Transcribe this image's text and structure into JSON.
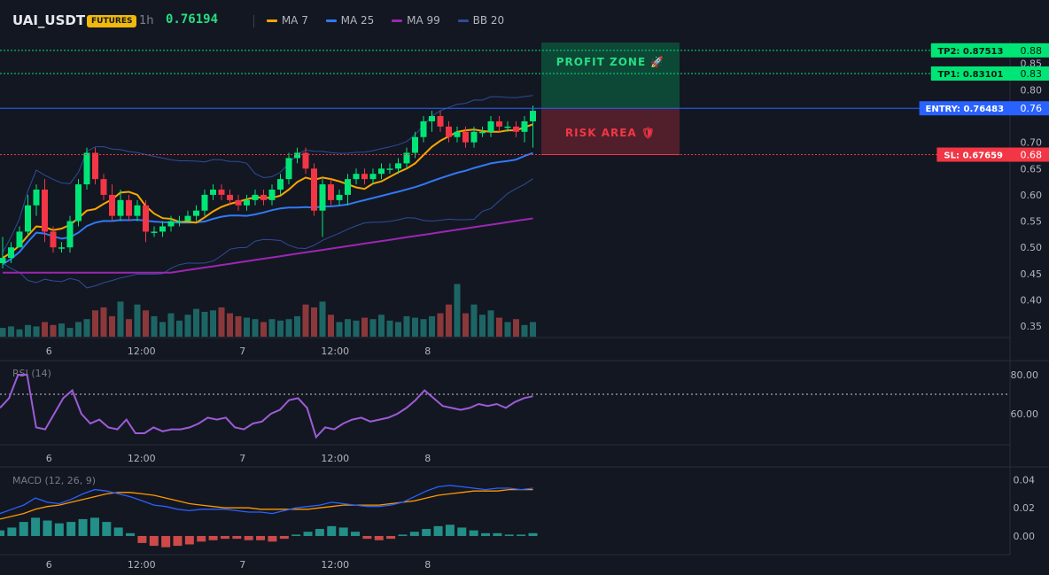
{
  "header": {
    "symbol": "UAI_USDT",
    "badge": "FUTURES",
    "timeframe": "1h",
    "last_price": "0.76194",
    "legend": [
      {
        "label": "MA 7",
        "color": "#f7a600"
      },
      {
        "label": "MA 25",
        "color": "#3179f5"
      },
      {
        "label": "MA 99",
        "color": "#9c27b0"
      },
      {
        "label": "BB 20",
        "color": "#2e4c9a"
      }
    ]
  },
  "zones": {
    "profit_label": "PROFIT ZONE 🚀",
    "risk_label": "RISK AREA 🛡",
    "tp2_label": "TP2: 0.87513",
    "tp1_label": "TP1: 0.83101",
    "entry_label": "ENTRY: 0.76483",
    "sl_label": "SL: 0.67659",
    "tp2": 0.87513,
    "tp1": 0.83101,
    "entry": 0.76483,
    "sl": 0.67659,
    "colors": {
      "tp": "#00e676",
      "entry": "#2962ff",
      "sl": "#f23645"
    }
  },
  "chart_data": [
    {
      "type": "candlestick",
      "title": "",
      "ylim": [
        0.33,
        0.89
      ],
      "y_ticks": [
        "0.88",
        "0.85",
        "0.83",
        "0.80",
        "0.76",
        "0.70",
        "0.68",
        "0.65",
        "0.60",
        "0.55",
        "0.50",
        "0.45",
        "0.40",
        "0.35"
      ],
      "x_tick_labels": [
        "6",
        "12:00",
        "7",
        "12:00",
        "8"
      ],
      "x_tick_index": [
        5.5,
        16.5,
        28.5,
        39.5,
        50.5
      ],
      "candles": [
        [
          0.48,
          0.47,
          0.52,
          0.46
        ],
        [
          0.5,
          0.48,
          0.51,
          0.47
        ],
        [
          0.53,
          0.5,
          0.54,
          0.5
        ],
        [
          0.58,
          0.53,
          0.6,
          0.52
        ],
        [
          0.61,
          0.58,
          0.62,
          0.56
        ],
        [
          0.53,
          0.61,
          0.63,
          0.51
        ],
        [
          0.5,
          0.53,
          0.54,
          0.49
        ],
        [
          0.5,
          0.5,
          0.51,
          0.49
        ],
        [
          0.55,
          0.5,
          0.56,
          0.49
        ],
        [
          0.62,
          0.55,
          0.63,
          0.54
        ],
        [
          0.68,
          0.62,
          0.69,
          0.61
        ],
        [
          0.63,
          0.68,
          0.69,
          0.62
        ],
        [
          0.6,
          0.63,
          0.64,
          0.59
        ],
        [
          0.56,
          0.6,
          0.62,
          0.55
        ],
        [
          0.59,
          0.56,
          0.61,
          0.55
        ],
        [
          0.56,
          0.59,
          0.6,
          0.55
        ],
        [
          0.58,
          0.56,
          0.59,
          0.55
        ],
        [
          0.53,
          0.58,
          0.59,
          0.51
        ],
        [
          0.53,
          0.53,
          0.54,
          0.52
        ],
        [
          0.54,
          0.53,
          0.55,
          0.52
        ],
        [
          0.55,
          0.54,
          0.56,
          0.53
        ],
        [
          0.55,
          0.55,
          0.56,
          0.54
        ],
        [
          0.56,
          0.55,
          0.57,
          0.55
        ],
        [
          0.57,
          0.56,
          0.58,
          0.55
        ],
        [
          0.6,
          0.57,
          0.61,
          0.56
        ],
        [
          0.61,
          0.6,
          0.62,
          0.59
        ],
        [
          0.6,
          0.61,
          0.62,
          0.59
        ],
        [
          0.59,
          0.6,
          0.61,
          0.58
        ],
        [
          0.58,
          0.59,
          0.6,
          0.57
        ],
        [
          0.59,
          0.58,
          0.6,
          0.57
        ],
        [
          0.6,
          0.59,
          0.61,
          0.58
        ],
        [
          0.59,
          0.6,
          0.61,
          0.58
        ],
        [
          0.61,
          0.59,
          0.62,
          0.58
        ],
        [
          0.63,
          0.61,
          0.64,
          0.6
        ],
        [
          0.67,
          0.63,
          0.68,
          0.62
        ],
        [
          0.68,
          0.67,
          0.69,
          0.66
        ],
        [
          0.65,
          0.68,
          0.69,
          0.64
        ],
        [
          0.57,
          0.65,
          0.66,
          0.56
        ],
        [
          0.62,
          0.57,
          0.63,
          0.52
        ],
        [
          0.59,
          0.62,
          0.63,
          0.58
        ],
        [
          0.6,
          0.59,
          0.61,
          0.58
        ],
        [
          0.63,
          0.6,
          0.64,
          0.58
        ],
        [
          0.64,
          0.63,
          0.65,
          0.62
        ],
        [
          0.63,
          0.64,
          0.65,
          0.62
        ],
        [
          0.64,
          0.63,
          0.65,
          0.62
        ],
        [
          0.65,
          0.64,
          0.66,
          0.63
        ],
        [
          0.65,
          0.65,
          0.66,
          0.64
        ],
        [
          0.66,
          0.65,
          0.67,
          0.64
        ],
        [
          0.68,
          0.66,
          0.69,
          0.65
        ],
        [
          0.71,
          0.68,
          0.72,
          0.67
        ],
        [
          0.74,
          0.71,
          0.75,
          0.7
        ],
        [
          0.75,
          0.74,
          0.76,
          0.72
        ],
        [
          0.73,
          0.75,
          0.76,
          0.72
        ],
        [
          0.71,
          0.73,
          0.74,
          0.7
        ],
        [
          0.72,
          0.71,
          0.73,
          0.7
        ],
        [
          0.7,
          0.72,
          0.73,
          0.69
        ],
        [
          0.72,
          0.7,
          0.73,
          0.69
        ],
        [
          0.72,
          0.72,
          0.73,
          0.71
        ],
        [
          0.74,
          0.72,
          0.75,
          0.71
        ],
        [
          0.73,
          0.74,
          0.75,
          0.72
        ],
        [
          0.73,
          0.73,
          0.74,
          0.72
        ],
        [
          0.72,
          0.73,
          0.74,
          0.71
        ],
        [
          0.74,
          0.72,
          0.75,
          0.7
        ],
        [
          0.76,
          0.74,
          0.77,
          0.69
        ]
      ],
      "candle_format": [
        "close",
        "open",
        "high",
        "low"
      ],
      "volume": [
        6,
        7,
        5,
        8,
        7,
        10,
        8,
        9,
        6,
        10,
        12,
        18,
        20,
        14,
        24,
        12,
        22,
        18,
        14,
        10,
        16,
        11,
        15,
        19,
        17,
        18,
        20,
        16,
        14,
        13,
        12,
        10,
        12,
        11,
        12,
        14,
        22,
        20,
        24,
        15,
        10,
        12,
        11,
        13,
        12,
        15,
        11,
        10,
        14,
        13,
        12,
        14,
        16,
        22,
        36,
        16,
        22,
        15,
        18,
        13,
        10,
        12,
        8,
        10
      ]
    },
    {
      "type": "line",
      "title": "RSI (14)",
      "ylim": [
        45,
        85
      ],
      "y_ticks": [
        "80.00",
        "60.00"
      ],
      "overbought": 70,
      "values": [
        63,
        68,
        80,
        80,
        53,
        52,
        60,
        68,
        72,
        60,
        55,
        57,
        53,
        52,
        57,
        50,
        50,
        53,
        51,
        52,
        52,
        53,
        55,
        58,
        57,
        58,
        53,
        52,
        55,
        56,
        60,
        62,
        67,
        68,
        63,
        48,
        53,
        52,
        55,
        57,
        58,
        56,
        57,
        58,
        60,
        63,
        67,
        72,
        68,
        64,
        63,
        62,
        63,
        65,
        64,
        65,
        63,
        66,
        68,
        69
      ]
    },
    {
      "type": "line",
      "title": "MACD (12, 26, 9)",
      "ylim": [
        -0.012,
        0.046
      ],
      "y_ticks": [
        "0.04",
        "0.02",
        "0.00"
      ],
      "macd": [
        0.016,
        0.019,
        0.022,
        0.027,
        0.024,
        0.023,
        0.026,
        0.03,
        0.033,
        0.032,
        0.03,
        0.028,
        0.025,
        0.022,
        0.021,
        0.019,
        0.018,
        0.019,
        0.019,
        0.019,
        0.018,
        0.017,
        0.017,
        0.016,
        0.018,
        0.02,
        0.021,
        0.022,
        0.024,
        0.023,
        0.022,
        0.021,
        0.021,
        0.022,
        0.024,
        0.028,
        0.032,
        0.035,
        0.036,
        0.035,
        0.034,
        0.033,
        0.034,
        0.034,
        0.033,
        0.034
      ],
      "signal": [
        0.012,
        0.014,
        0.016,
        0.019,
        0.021,
        0.022,
        0.024,
        0.026,
        0.028,
        0.03,
        0.031,
        0.031,
        0.03,
        0.029,
        0.027,
        0.025,
        0.023,
        0.022,
        0.021,
        0.02,
        0.02,
        0.02,
        0.019,
        0.019,
        0.019,
        0.019,
        0.019,
        0.02,
        0.021,
        0.022,
        0.022,
        0.022,
        0.022,
        0.023,
        0.024,
        0.025,
        0.027,
        0.029,
        0.03,
        0.031,
        0.032,
        0.032,
        0.032,
        0.033,
        0.033,
        0.033
      ],
      "hist": [
        0.004,
        0.006,
        0.01,
        0.013,
        0.011,
        0.009,
        0.01,
        0.012,
        0.013,
        0.01,
        0.006,
        0.002,
        -0.005,
        -0.007,
        -0.008,
        -0.007,
        -0.006,
        -0.004,
        -0.003,
        -0.002,
        -0.002,
        -0.003,
        -0.003,
        -0.004,
        -0.002,
        0.001,
        0.003,
        0.005,
        0.007,
        0.006,
        0.003,
        -0.002,
        -0.003,
        -0.002,
        0.001,
        0.003,
        0.005,
        0.007,
        0.008,
        0.006,
        0.004,
        0.002,
        0.002,
        0.001,
        0.001,
        0.002
      ]
    }
  ]
}
